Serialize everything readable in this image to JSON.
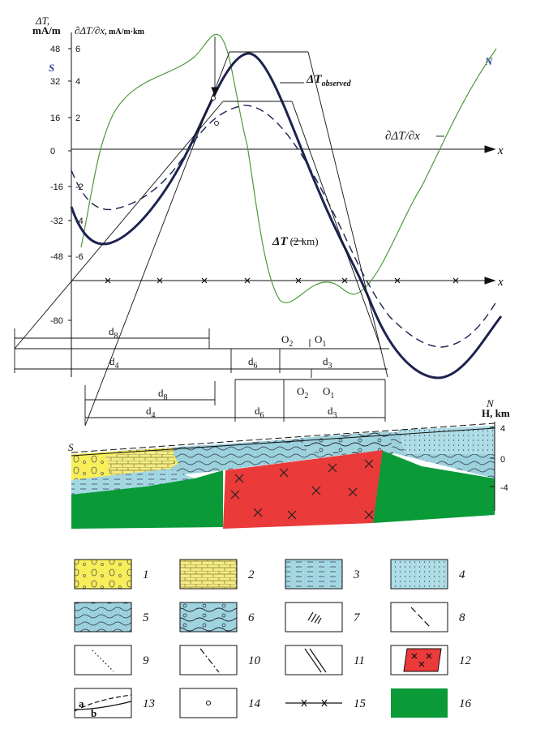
{
  "left_axis": {
    "label": "ΔT,",
    "unit": "mA/m",
    "ticks": [
      "48",
      "32",
      "16",
      "0",
      "-16",
      "-32",
      "-48",
      "-80"
    ]
  },
  "right_axis": {
    "label": "∂ΔT/∂x",
    "unit": ", mA/m·km",
    "ticks": [
      "6",
      "4",
      "2",
      "-2",
      "-4",
      "-6"
    ]
  },
  "profile": {
    "south": "S",
    "north": "N",
    "observed_label": "ΔT",
    "observed_sub": "observed",
    "derivative_label": "∂ΔT/∂x",
    "upward_label": "ΔT",
    "upward_height": "(2 km)",
    "x_axis_labels": [
      "x",
      "x"
    ]
  },
  "intervals_upper": {
    "d8": {
      "symbol": "d",
      "sub": "8"
    },
    "d4": {
      "symbol": "d",
      "sub": "4"
    },
    "d6": {
      "symbol": "d",
      "sub": "6"
    },
    "d3": {
      "symbol": "d",
      "sub": "3"
    },
    "o2": {
      "symbol": "O",
      "sub": "2"
    },
    "o1": {
      "symbol": "O",
      "sub": "1"
    }
  },
  "intervals_lower": {
    "d8": {
      "symbol": "d",
      "sub": "8"
    },
    "d4": {
      "symbol": "d",
      "sub": "4"
    },
    "d6": {
      "symbol": "d",
      "sub": "6"
    },
    "d3": {
      "symbol": "d",
      "sub": "3"
    },
    "o2": {
      "symbol": "O",
      "sub": "2"
    },
    "o1": {
      "symbol": "O",
      "sub": "1"
    }
  },
  "section": {
    "south": "S",
    "north": "N",
    "depth_label": "H, km",
    "ticks": [
      "4",
      "0",
      "-4"
    ]
  },
  "legend": {
    "items": [
      "1",
      "2",
      "3",
      "4",
      "5",
      "6",
      "7",
      "8",
      "9",
      "10",
      "11",
      "12",
      "13",
      "14",
      "15",
      "16"
    ],
    "item13_labels": [
      "a",
      "b"
    ]
  }
}
